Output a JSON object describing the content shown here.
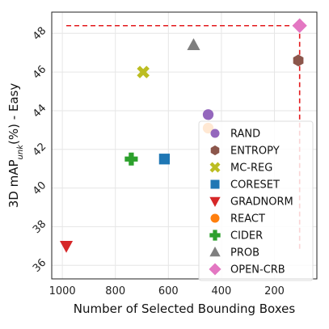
{
  "chart_data": {
    "type": "scatter",
    "xlabel": "Number of Selected Bounding Boxes",
    "ylabel": "3D mAP_unk(%) - Easy",
    "ylabel_parts": {
      "before": "3D mAP",
      "sub": "unk",
      "after": "(%) - Easy"
    },
    "xlim": [
      1040,
      40
    ],
    "ylim": [
      35.3,
      49.1
    ],
    "xticks": [
      1000,
      800,
      600,
      400,
      200
    ],
    "yticks": [
      36,
      38,
      40,
      42,
      44,
      46,
      48
    ],
    "grid": true,
    "legend_position": "bottom-right",
    "series": [
      {
        "name": "RAND",
        "marker": "circle",
        "color": "#9467bd",
        "x": 450,
        "y": 43.8
      },
      {
        "name": "ENTROPY",
        "marker": "hexagon",
        "color": "#8c564b",
        "x": 110,
        "y": 46.6
      },
      {
        "name": "MC-REG",
        "marker": "x",
        "color": "#bcbd22",
        "x": 695,
        "y": 46.0
      },
      {
        "name": "CORESET",
        "marker": "square",
        "color": "#1f77b4",
        "x": 615,
        "y": 41.5
      },
      {
        "name": "GRADNORM",
        "marker": "triangle-down",
        "color": "#d62728",
        "x": 985,
        "y": 37.0
      },
      {
        "name": "REACT",
        "marker": "circle",
        "color": "#ff7f0e",
        "x": 450,
        "y": 43.1
      },
      {
        "name": "CIDER",
        "marker": "plus",
        "color": "#2ca02c",
        "x": 740,
        "y": 41.5
      },
      {
        "name": "PROB",
        "marker": "triangle-up",
        "color": "#7f7f7f",
        "x": 505,
        "y": 47.4
      },
      {
        "name": "OPEN-CRB",
        "marker": "diamond",
        "color": "#e377c2",
        "x": 105,
        "y": 48.4
      }
    ],
    "reference_lines": [
      {
        "orientation": "horizontal",
        "y": 48.4,
        "x_from": 985,
        "x_to": 105,
        "color": "#e3191c",
        "style": "dashed"
      },
      {
        "orientation": "vertical",
        "x": 105,
        "y_from": 48.4,
        "y_to": 36.8,
        "color": "#e3191c",
        "style": "dashed"
      }
    ]
  }
}
